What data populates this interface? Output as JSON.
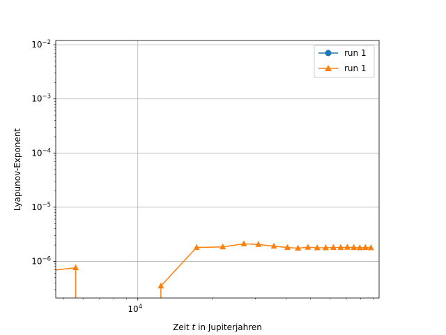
{
  "chart_data": {
    "type": "line",
    "xlabel_parts": [
      "Zeit ",
      "t",
      " in Jupiterjahren"
    ],
    "ylabel": "Lyapunov-Exponent",
    "x_scale": "log",
    "y_scale": "log",
    "xlim": [
      4650,
      95000
    ],
    "ylim": [
      2.1e-07,
      0.012
    ],
    "x_ticks": [
      {
        "value": 10000,
        "base": "10",
        "exp": "4"
      }
    ],
    "y_ticks": [
      {
        "value": 1e-06,
        "base": "10",
        "exp": "−6"
      },
      {
        "value": 1e-05,
        "base": "10",
        "exp": "−5"
      },
      {
        "value": 0.0001,
        "base": "10",
        "exp": "−4"
      },
      {
        "value": 0.001,
        "base": "10",
        "exp": "−3"
      },
      {
        "value": 0.01,
        "base": "10",
        "exp": "−2"
      }
    ],
    "grid": true,
    "legend_position": "top-right",
    "series": [
      {
        "name": "run 1",
        "color": "#1f77b4",
        "marker": "circle",
        "x": [],
        "y": []
      },
      {
        "name": "run 1",
        "color": "#ff7f0e",
        "marker": "triangle",
        "x": [
          5600,
          12400,
          17300,
          22100,
          26900,
          30800,
          35600,
          40400,
          44600,
          48900,
          53300,
          57700,
          62000,
          66400,
          70600,
          75000,
          79300,
          83600,
          88000
        ],
        "y": [
          7.6e-07,
          3.5e-07,
          1.8e-06,
          1.85e-06,
          2.1e-06,
          2.05e-06,
          1.9e-06,
          1.8e-06,
          1.75e-06,
          1.82e-06,
          1.78e-06,
          1.78e-06,
          1.8e-06,
          1.8e-06,
          1.82e-06,
          1.8e-06,
          1.78e-06,
          1.8e-06,
          1.78e-06
        ]
      }
    ]
  }
}
